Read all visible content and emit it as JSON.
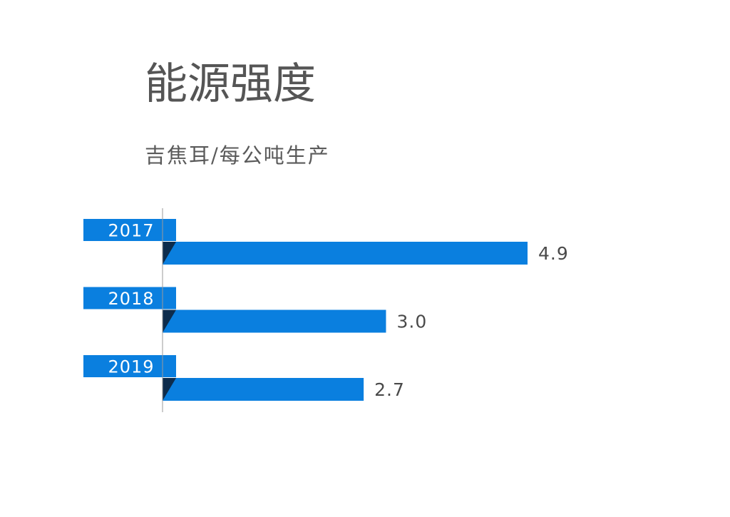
{
  "header": {
    "title": "能源强度",
    "subtitle": "吉焦耳/每公吨生产"
  },
  "chart_data": {
    "type": "bar",
    "orientation": "horizontal",
    "title": "能源强度",
    "subtitle": "吉焦耳/每公吨生产",
    "categories": [
      "2017",
      "2018",
      "2019"
    ],
    "values": [
      4.9,
      3.0,
      2.7
    ],
    "value_labels": [
      "4.9",
      "3.0",
      "2.7"
    ],
    "xlim": [
      0,
      4.9
    ],
    "grid": false,
    "legend": "none",
    "colors": {
      "bar": "#0a7fdf",
      "tab": "#0a7fdf",
      "fold": "#0d2c4c",
      "axis": "#9a9a9a",
      "label": "#4a4a4a",
      "tab_text": "#ffffff"
    }
  }
}
